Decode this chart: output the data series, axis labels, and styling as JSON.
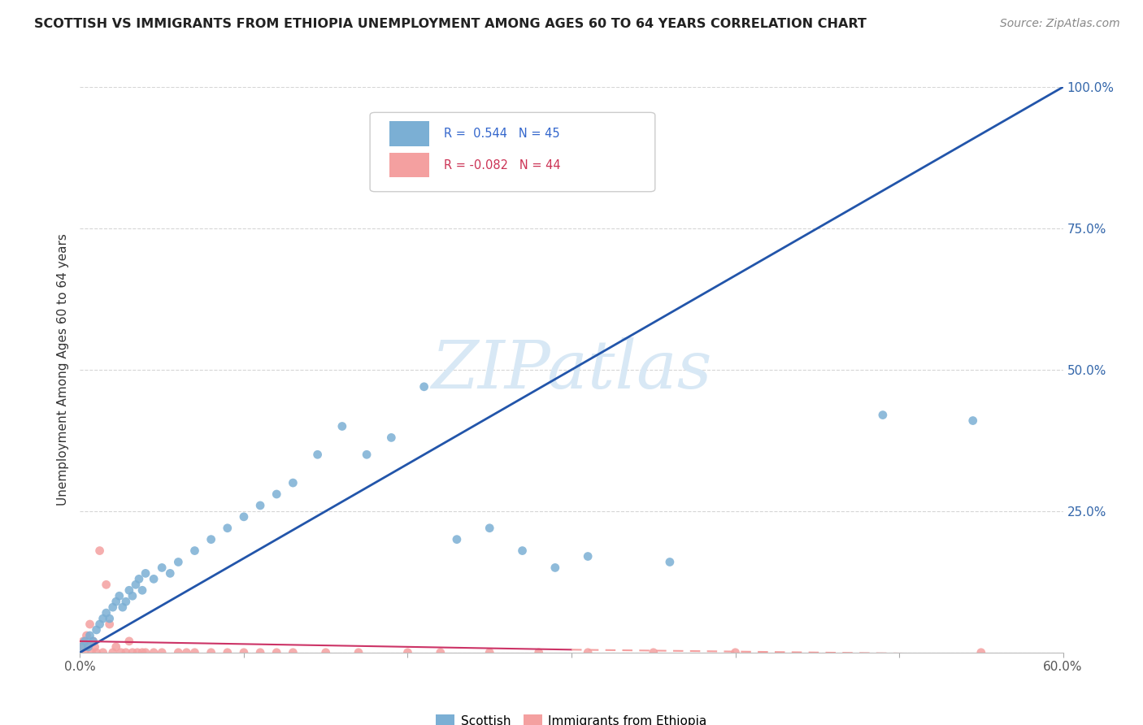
{
  "title": "SCOTTISH VS IMMIGRANTS FROM ETHIOPIA UNEMPLOYMENT AMONG AGES 60 TO 64 YEARS CORRELATION CHART",
  "source": "Source: ZipAtlas.com",
  "ylabel": "Unemployment Among Ages 60 to 64 years",
  "r_scottish": 0.544,
  "n_scottish": 45,
  "r_ethiopia": -0.082,
  "n_ethiopia": 44,
  "x_min": 0.0,
  "x_max": 0.6,
  "y_min": 0.0,
  "y_max": 1.0,
  "scottish_color": "#7BAFD4",
  "ethiopia_color": "#F4A0A0",
  "scottish_line_color": "#2255AA",
  "ethiopia_line_solid_color": "#CC3366",
  "ethiopia_line_dash_color": "#F4A0A0",
  "watermark_text": "ZIPatlas",
  "watermark_color": "#D8E8F5",
  "background_color": "#FFFFFF",
  "scottish_points_x": [
    0.001,
    0.003,
    0.005,
    0.006,
    0.008,
    0.01,
    0.012,
    0.014,
    0.016,
    0.018,
    0.02,
    0.022,
    0.024,
    0.026,
    0.028,
    0.03,
    0.032,
    0.034,
    0.036,
    0.038,
    0.04,
    0.045,
    0.05,
    0.055,
    0.06,
    0.07,
    0.08,
    0.09,
    0.1,
    0.11,
    0.12,
    0.13,
    0.145,
    0.16,
    0.175,
    0.19,
    0.21,
    0.23,
    0.25,
    0.27,
    0.29,
    0.31,
    0.36,
    0.49,
    0.545
  ],
  "scottish_points_y": [
    0.01,
    0.02,
    0.01,
    0.03,
    0.02,
    0.04,
    0.05,
    0.06,
    0.07,
    0.06,
    0.08,
    0.09,
    0.1,
    0.08,
    0.09,
    0.11,
    0.1,
    0.12,
    0.13,
    0.11,
    0.14,
    0.13,
    0.15,
    0.14,
    0.16,
    0.18,
    0.2,
    0.22,
    0.24,
    0.26,
    0.28,
    0.3,
    0.35,
    0.4,
    0.35,
    0.38,
    0.47,
    0.2,
    0.22,
    0.18,
    0.15,
    0.17,
    0.16,
    0.42,
    0.41
  ],
  "ethiopia_points_x": [
    0.001,
    0.002,
    0.003,
    0.004,
    0.005,
    0.006,
    0.007,
    0.008,
    0.009,
    0.01,
    0.012,
    0.014,
    0.016,
    0.018,
    0.02,
    0.022,
    0.025,
    0.028,
    0.03,
    0.032,
    0.035,
    0.038,
    0.04,
    0.045,
    0.05,
    0.06,
    0.065,
    0.07,
    0.08,
    0.09,
    0.1,
    0.11,
    0.12,
    0.13,
    0.15,
    0.17,
    0.2,
    0.22,
    0.25,
    0.28,
    0.31,
    0.35,
    0.4,
    0.55
  ],
  "ethiopia_points_y": [
    0.01,
    0.02,
    0.0,
    0.03,
    0.01,
    0.05,
    0.0,
    0.02,
    0.01,
    0.0,
    0.18,
    0.0,
    0.12,
    0.05,
    0.0,
    0.01,
    0.0,
    0.0,
    0.02,
    0.0,
    0.0,
    0.0,
    0.0,
    0.0,
    0.0,
    0.0,
    0.0,
    0.0,
    0.0,
    0.0,
    0.0,
    0.0,
    0.0,
    0.0,
    0.0,
    0.0,
    0.0,
    0.0,
    0.0,
    0.0,
    0.0,
    0.0,
    0.0,
    0.0
  ],
  "line_scottish_x0": 0.0,
  "line_scottish_y0": 0.0,
  "line_scottish_x1": 0.6,
  "line_scottish_y1": 1.0,
  "line_ethiopia_solid_x0": 0.0,
  "line_ethiopia_solid_y0": 0.02,
  "line_ethiopia_solid_x1": 0.3,
  "line_ethiopia_solid_y1": 0.005,
  "line_ethiopia_dash_x0": 0.3,
  "line_ethiopia_dash_y0": 0.005,
  "line_ethiopia_dash_x1": 0.6,
  "line_ethiopia_dash_y1": -0.005
}
